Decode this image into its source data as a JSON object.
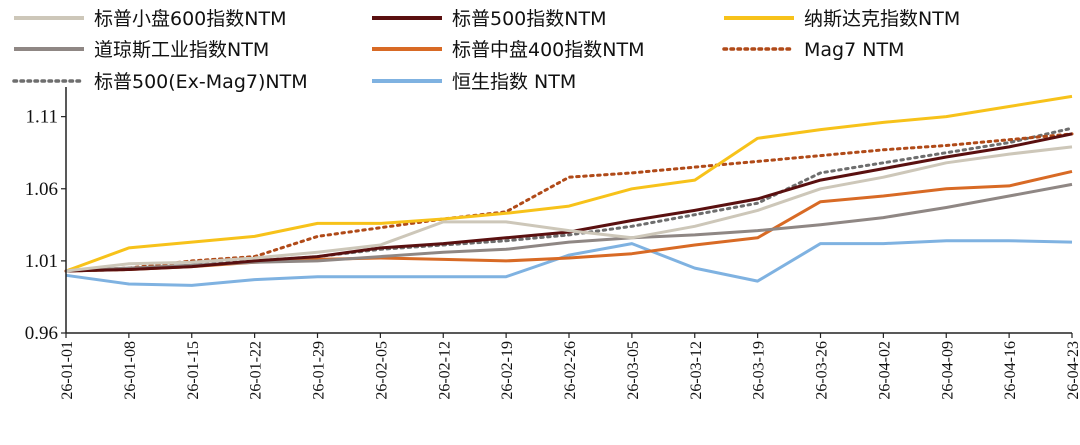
{
  "chart_data": {
    "type": "line",
    "title": "",
    "xlabel": "",
    "ylabel": "",
    "ylim": [
      0.96,
      1.125
    ],
    "yticks": [
      "1.11",
      "1.06",
      "1.01",
      "0.96"
    ],
    "x_tick_labels": [
      "26-01-01",
      "26-01-08",
      "26-01-15",
      "26-01-22",
      "26-01-29",
      "26-02-05",
      "26-02-12",
      "26-02-19",
      "26-02-26",
      "26-03-05",
      "26-03-12",
      "26-03-19",
      "26-03-26",
      "26-04-02",
      "26-04-09",
      "26-04-16",
      "26-04-23"
    ],
    "x": [
      "26-01-01",
      "26-01-08",
      "26-01-15",
      "26-01-22",
      "26-01-29",
      "26-02-05",
      "26-02-12",
      "26-02-19",
      "26-02-26",
      "26-03-05",
      "26-03-12",
      "26-03-19",
      "26-03-26",
      "26-04-02",
      "26-04-09",
      "26-04-16",
      "26-04-23"
    ],
    "grid": false,
    "legend_position": "top",
    "series": [
      {
        "name": "标普小盘600指数NTM",
        "color": "#cdc7b9",
        "style": "solid",
        "values": [
          1.003,
          1.008,
          1.009,
          1.012,
          1.016,
          1.021,
          1.037,
          1.037,
          1.031,
          1.026,
          1.034,
          1.045,
          1.06,
          1.068,
          1.078,
          1.084,
          1.089
        ]
      },
      {
        "name": "标普500指数NTM",
        "color": "#5a1010",
        "style": "solid",
        "values": [
          1.003,
          1.004,
          1.006,
          1.01,
          1.013,
          1.019,
          1.022,
          1.026,
          1.03,
          1.038,
          1.045,
          1.053,
          1.066,
          1.074,
          1.082,
          1.089,
          1.098
        ]
      },
      {
        "name": "纳斯达克指数NTM",
        "color": "#f7c21a",
        "style": "solid",
        "values": [
          1.003,
          1.019,
          1.023,
          1.027,
          1.036,
          1.036,
          1.039,
          1.043,
          1.048,
          1.06,
          1.066,
          1.095,
          1.101,
          1.106,
          1.11,
          1.117,
          1.124
        ]
      },
      {
        "name": "道琼斯工业指数NTM",
        "color": "#8f8784",
        "style": "solid",
        "values": [
          1.003,
          1.005,
          1.007,
          1.009,
          1.01,
          1.013,
          1.016,
          1.018,
          1.023,
          1.026,
          1.028,
          1.031,
          1.035,
          1.04,
          1.047,
          1.055,
          1.063
        ]
      },
      {
        "name": "标普中盘400指数NTM",
        "color": "#d86a25",
        "style": "solid",
        "values": [
          1.003,
          1.004,
          1.006,
          1.009,
          1.011,
          1.012,
          1.011,
          1.01,
          1.012,
          1.015,
          1.021,
          1.026,
          1.051,
          1.055,
          1.06,
          1.062,
          1.072
        ]
      },
      {
        "name": "Mag7 NTM",
        "color": "#b04a18",
        "style": "dotted",
        "values": [
          1.003,
          1.005,
          1.01,
          1.013,
          1.027,
          1.033,
          1.039,
          1.044,
          1.068,
          1.071,
          1.075,
          1.079,
          1.083,
          1.087,
          1.09,
          1.094,
          1.098
        ]
      },
      {
        "name": "标普500(Ex-Mag7)NTM",
        "color": "#6e6e6e",
        "style": "dotted",
        "values": [
          1.003,
          1.004,
          1.007,
          1.01,
          1.013,
          1.018,
          1.021,
          1.024,
          1.028,
          1.034,
          1.042,
          1.05,
          1.071,
          1.078,
          1.085,
          1.092,
          1.102
        ]
      },
      {
        "name": "恒生指数 NTM",
        "color": "#7fb2e1",
        "style": "solid",
        "values": [
          1.0,
          0.994,
          0.993,
          0.997,
          0.999,
          0.999,
          0.999,
          0.999,
          1.014,
          1.022,
          1.005,
          0.996,
          1.022,
          1.022,
          1.024,
          1.024,
          1.023
        ]
      }
    ]
  }
}
